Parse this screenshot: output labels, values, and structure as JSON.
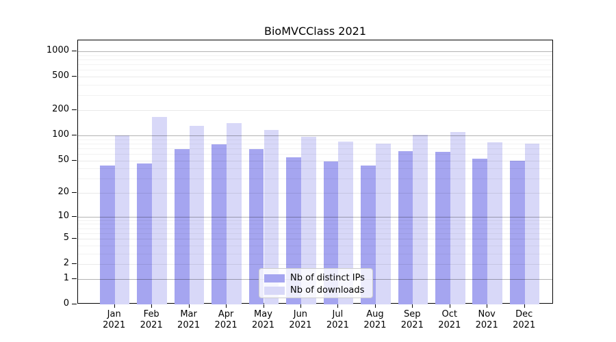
{
  "title": "BioMVCClass 2021",
  "legend": {
    "items": [
      {
        "label": "Nb of distinct IPs",
        "color": "#a5a5f0"
      },
      {
        "label": "Nb of downloads",
        "color": "#d8d8f8"
      }
    ]
  },
  "chart_data": {
    "type": "bar",
    "title": "BioMVCClass 2021",
    "categories": [
      "Jan",
      "Feb",
      "Mar",
      "Apr",
      "May",
      "Jun",
      "Jul",
      "Aug",
      "Sep",
      "Oct",
      "Nov",
      "Dec"
    ],
    "year": "2021",
    "series": [
      {
        "name": "Nb of distinct IPs",
        "color": "#a5a5f0",
        "values": [
          43,
          46,
          68,
          78,
          69,
          54,
          49,
          43,
          65,
          64,
          52,
          50
        ]
      },
      {
        "name": "Nb of downloads",
        "color": "#d8d8f8",
        "values": [
          100,
          166,
          129,
          141,
          117,
          97,
          85,
          80,
          101,
          110,
          82,
          79
        ]
      }
    ],
    "y_axis": {
      "scale": "log10(value+1)",
      "tick_values": [
        0,
        1,
        2,
        5,
        10,
        20,
        50,
        100,
        200,
        500,
        1000
      ],
      "tick_labels": [
        "0",
        "1",
        "2",
        "5",
        "10",
        "20",
        "50",
        "100",
        "200",
        "500",
        "1000"
      ],
      "range": [
        0,
        1350
      ]
    },
    "x_axis": {
      "label_line2": "2021"
    },
    "grid": true,
    "legend_position": "lower center"
  }
}
